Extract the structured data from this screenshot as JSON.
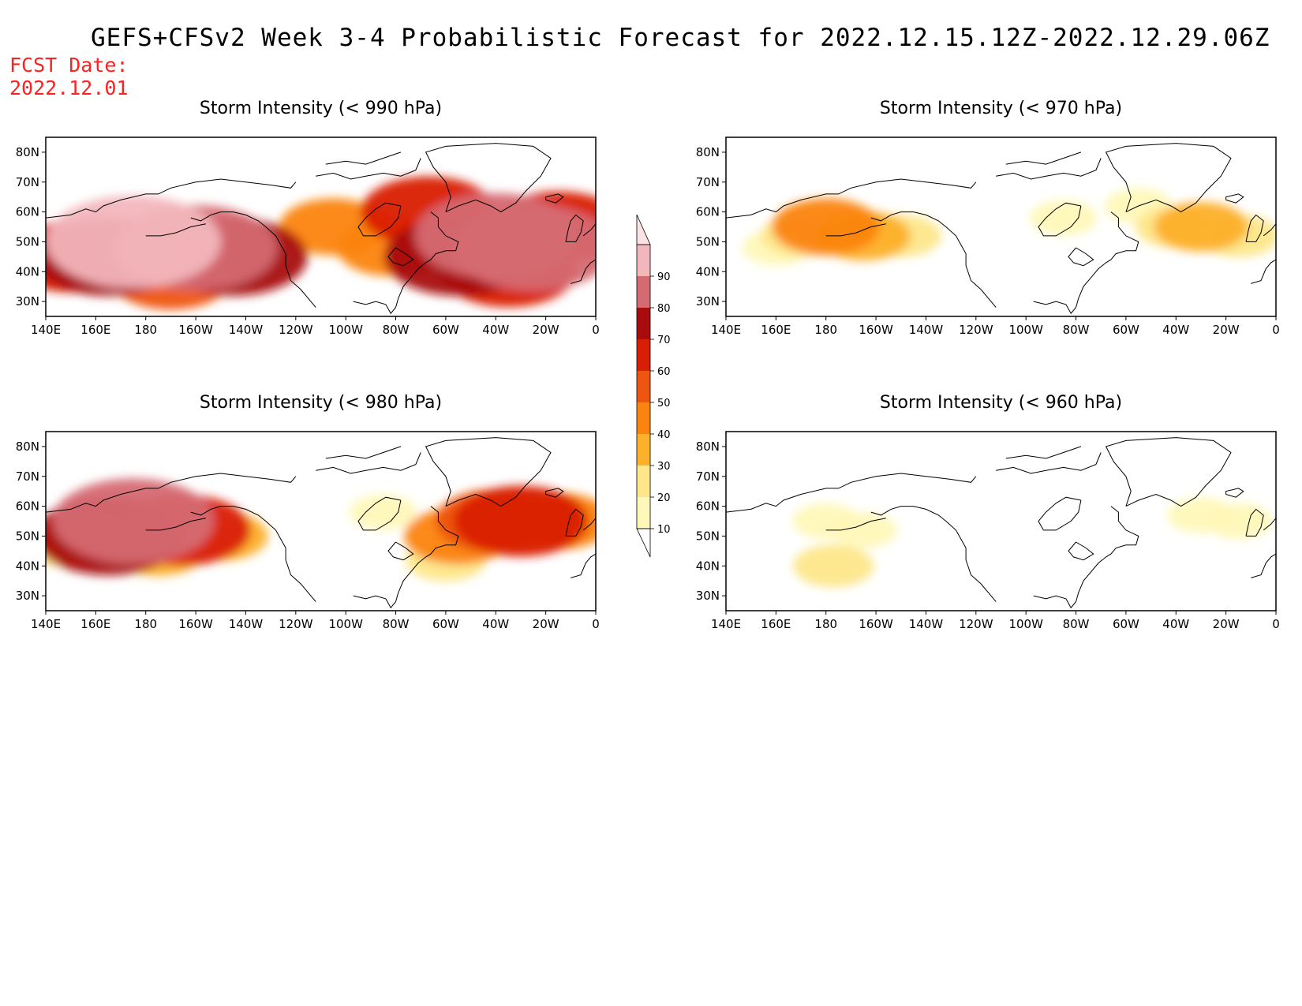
{
  "header": {
    "title": "GEFS+CFSv2 Week 3-4 Probabilistic Forecast for 2022.12.15.12Z-2022.12.29.06Z",
    "fcst_label": "FCST Date:",
    "fcst_date": "2022.12.01"
  },
  "colors": {
    "10": "#fff8b8",
    "20": "#fde78a",
    "30": "#fdb02a",
    "40": "#fb8410",
    "50": "#ee5510",
    "60": "#d91e06",
    "70": "#a80c0c",
    "80": "#d56a72",
    "90": "#f2b6bd",
    "100": "#fde2e4"
  },
  "colorbar": {
    "labels": [
      "10",
      "20",
      "30",
      "40",
      "50",
      "60",
      "70",
      "80",
      "90"
    ]
  },
  "map_axes": {
    "lon_labels": [
      "140E",
      "160E",
      "180",
      "160W",
      "140W",
      "120W",
      "100W",
      "80W",
      "60W",
      "40W",
      "20W",
      "0"
    ],
    "lat_labels": [
      "80N",
      "70N",
      "60N",
      "50N",
      "40N",
      "30N"
    ],
    "lon_range_deg_east": [
      140,
      360
    ],
    "lat_range": [
      25,
      85
    ]
  },
  "chart_data": [
    {
      "type": "heatmap",
      "title": "Storm Intensity (< 990 hPa)",
      "blobs": [
        {
          "lon": 175,
          "lat": 50,
          "value": 90
        },
        {
          "lon": 200,
          "lat": 48,
          "value": 80
        },
        {
          "lon": 165,
          "lat": 45,
          "value": 70
        },
        {
          "lon": 150,
          "lat": 45,
          "value": 60
        },
        {
          "lon": 215,
          "lat": 45,
          "value": 70
        },
        {
          "lon": 190,
          "lat": 38,
          "value": 50
        },
        {
          "lon": 255,
          "lat": 55,
          "value": 40
        },
        {
          "lon": 278,
          "lat": 48,
          "value": 40
        },
        {
          "lon": 293,
          "lat": 60,
          "value": 60
        },
        {
          "lon": 320,
          "lat": 52,
          "value": 80
        },
        {
          "lon": 305,
          "lat": 45,
          "value": 70
        },
        {
          "lon": 335,
          "lat": 48,
          "value": 80
        },
        {
          "lon": 345,
          "lat": 55,
          "value": 60
        },
        {
          "lon": 325,
          "lat": 40,
          "value": 60
        }
      ]
    },
    {
      "type": "heatmap",
      "title": "Storm Intensity (< 970 hPa)",
      "blobs": [
        {
          "lon": 170,
          "lat": 52,
          "value": 20
        },
        {
          "lon": 180,
          "lat": 55,
          "value": 40
        },
        {
          "lon": 195,
          "lat": 52,
          "value": 30
        },
        {
          "lon": 160,
          "lat": 48,
          "value": 10
        },
        {
          "lon": 210,
          "lat": 52,
          "value": 20
        },
        {
          "lon": 275,
          "lat": 58,
          "value": 10
        },
        {
          "lon": 320,
          "lat": 55,
          "value": 20
        },
        {
          "lon": 330,
          "lat": 55,
          "value": 30
        },
        {
          "lon": 345,
          "lat": 52,
          "value": 20
        },
        {
          "lon": 305,
          "lat": 62,
          "value": 10
        }
      ]
    },
    {
      "type": "heatmap",
      "title": "Storm Intensity (< 980 hPa)",
      "blobs": [
        {
          "lon": 175,
          "lat": 55,
          "value": 80
        },
        {
          "lon": 165,
          "lat": 50,
          "value": 70
        },
        {
          "lon": 195,
          "lat": 52,
          "value": 60
        },
        {
          "lon": 155,
          "lat": 50,
          "value": 40
        },
        {
          "lon": 185,
          "lat": 45,
          "value": 30
        },
        {
          "lon": 210,
          "lat": 50,
          "value": 30
        },
        {
          "lon": 145,
          "lat": 47,
          "value": 20
        },
        {
          "lon": 275,
          "lat": 58,
          "value": 10
        },
        {
          "lon": 320,
          "lat": 55,
          "value": 50
        },
        {
          "lon": 330,
          "lat": 55,
          "value": 60
        },
        {
          "lon": 305,
          "lat": 50,
          "value": 40
        },
        {
          "lon": 345,
          "lat": 55,
          "value": 40
        },
        {
          "lon": 300,
          "lat": 42,
          "value": 20
        }
      ]
    },
    {
      "type": "heatmap",
      "title": "Storm Intensity (< 960 hPa)",
      "blobs": [
        {
          "lon": 180,
          "lat": 55,
          "value": 10
        },
        {
          "lon": 195,
          "lat": 52,
          "value": 10
        },
        {
          "lon": 183,
          "lat": 40,
          "value": 20
        },
        {
          "lon": 330,
          "lat": 57,
          "value": 10
        },
        {
          "lon": 345,
          "lat": 55,
          "value": 10
        }
      ]
    }
  ]
}
